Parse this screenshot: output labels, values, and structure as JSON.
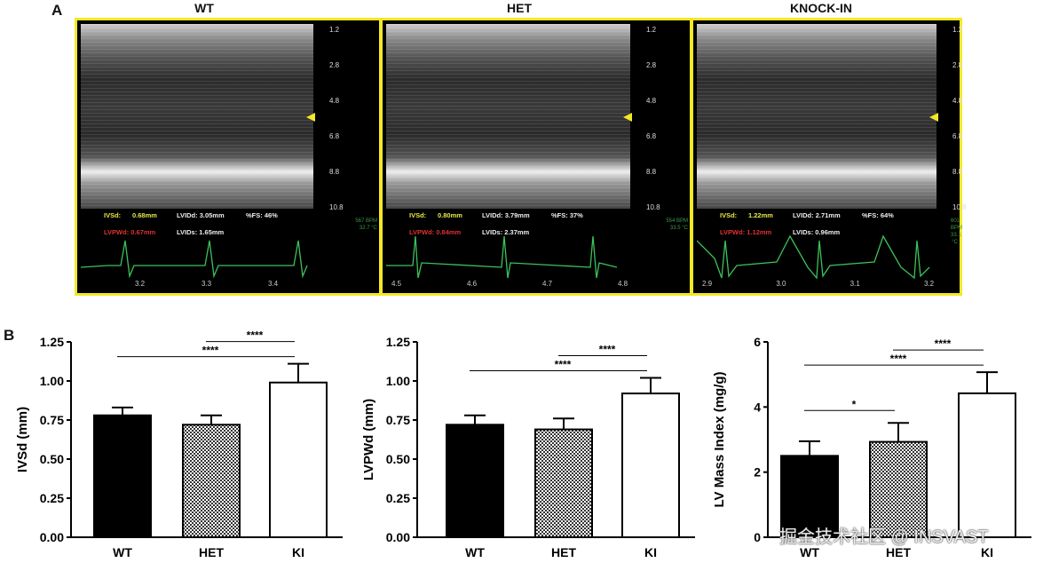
{
  "panel_a_label": "A",
  "panel_b_label": "B",
  "echo_panels": [
    {
      "title": "WT",
      "ivsd_label": "IVSd:",
      "ivsd": "0.68mm",
      "lvidd": "LVIDd: 3.05mm",
      "fs": "%FS: 46%",
      "lvpwd": "LVPWd: 0.67mm",
      "lvids": "LVIDs: 1.65mm",
      "bpm": "567 BPM",
      "temp": "32.7 °C",
      "times": [
        "3.2",
        "3.3",
        "3.4"
      ],
      "depths": [
        "1.2",
        "2.8",
        "4.8",
        "6.8",
        "8.8",
        "10.8"
      ]
    },
    {
      "title": "HET",
      "ivsd_label": "IVSd:",
      "ivsd": "0.80mm",
      "lvidd": "LVIDd: 3.79mm",
      "fs": "%FS: 37%",
      "lvpwd": "LVPWd: 0.84mm",
      "lvids": "LVIDs: 2.37mm",
      "bpm": "554 BPM",
      "temp": "33.5 °C",
      "times": [
        "4.5",
        "4.6",
        "4.7",
        "4.8"
      ],
      "depths": [
        "1.2",
        "2.8",
        "4.8",
        "6.8",
        "8.8",
        "10.8"
      ]
    },
    {
      "title": "KNOCK-IN",
      "ivsd_label": "IVSd:",
      "ivsd": "1.22mm",
      "lvidd": "LVIDd: 2.71mm",
      "fs": "%FS: 64%",
      "lvpwd": "LVPWd: 1.12mm",
      "lvids": "LVIDs: 0.96mm",
      "bpm": "601 BPM",
      "temp": "33.1 °C",
      "times": [
        "2.9",
        "3.0",
        "3.1",
        "3.2"
      ],
      "depths": [
        "1.2",
        "2.8",
        "4.8",
        "6.8",
        "8.8",
        "10.8"
      ]
    }
  ],
  "watermark": "掘金技术社区 @ INSVAST",
  "chart_data": [
    {
      "type": "bar",
      "ylabel": "IVSd (mm)",
      "categories": [
        "WT",
        "HET",
        "KI"
      ],
      "values": [
        0.78,
        0.72,
        0.99
      ],
      "errors": [
        0.05,
        0.06,
        0.12
      ],
      "ylim": [
        0,
        1.25
      ],
      "yticks": [
        "0.00",
        "0.25",
        "0.50",
        "0.75",
        "1.00",
        "1.25"
      ],
      "significance": [
        {
          "from": 1,
          "to": 2,
          "label": "****"
        },
        {
          "from": 0,
          "to": 2,
          "label": "****"
        }
      ]
    },
    {
      "type": "bar",
      "ylabel": "LVPWd (mm)",
      "categories": [
        "WT",
        "HET",
        "KI"
      ],
      "values": [
        0.72,
        0.69,
        0.92
      ],
      "errors": [
        0.06,
        0.07,
        0.1
      ],
      "ylim": [
        0,
        1.25
      ],
      "yticks": [
        "0.00",
        "0.25",
        "0.50",
        "0.75",
        "1.00",
        "1.25"
      ],
      "significance": [
        {
          "from": 1,
          "to": 2,
          "label": "****"
        },
        {
          "from": 0,
          "to": 2,
          "label": "****"
        }
      ]
    },
    {
      "type": "bar",
      "ylabel": "LV Mass Index (mg/g)",
      "categories": [
        "WT",
        "HET",
        "KI"
      ],
      "values": [
        2.5,
        2.93,
        4.42
      ],
      "errors": [
        0.45,
        0.58,
        0.65
      ],
      "ylim": [
        0,
        6
      ],
      "yticks": [
        "0",
        "2",
        "4",
        "6"
      ],
      "significance": [
        {
          "from": 1,
          "to": 2,
          "label": "****"
        },
        {
          "from": 0,
          "to": 2,
          "label": "****"
        },
        {
          "from": 0,
          "to": 1,
          "label": "*"
        }
      ]
    }
  ]
}
